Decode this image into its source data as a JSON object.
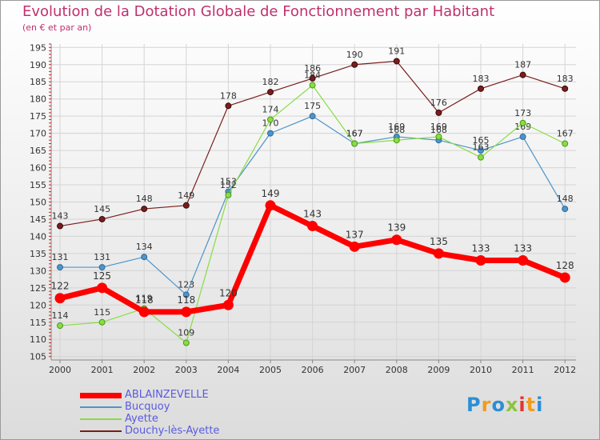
{
  "header": {
    "title": "Evolution de la Dotation Globale de Fonctionnement par Habitant",
    "subtitle": "(en € et par an)"
  },
  "logo": {
    "text": "Proxiti",
    "colors": [
      "#2a8fd6",
      "#f29b1d",
      "#2a8fd6",
      "#8bc53f",
      "#e3342f",
      "#f29b1d",
      "#2a8fd6"
    ]
  },
  "chart_data": {
    "type": "line",
    "title": "Evolution de la Dotation Globale de Fonctionnement par Habitant",
    "subtitle": "(en € et par an)",
    "xlabel": "",
    "ylabel": "",
    "x": [
      "2000",
      "2001",
      "2002",
      "2003",
      "2004",
      "2005",
      "2006",
      "2007",
      "2008",
      "2009",
      "2010",
      "2011",
      "2012"
    ],
    "ylim": [
      104,
      196
    ],
    "yticks": [
      105,
      110,
      115,
      120,
      125,
      130,
      135,
      140,
      145,
      150,
      155,
      160,
      165,
      170,
      175,
      180,
      185,
      190,
      195
    ],
    "grid": true,
    "legend": "bottom-left",
    "series": [
      {
        "name": "Douchy-lès-Ayette",
        "color": "#7a1d1d",
        "values": [
          143,
          145,
          148,
          149,
          178,
          182,
          186,
          190,
          191,
          176,
          183,
          187,
          183
        ]
      },
      {
        "name": "Bucquoy",
        "color": "#4e94c8",
        "values": [
          131,
          131,
          134,
          123,
          153,
          170,
          175,
          167,
          169,
          168,
          165,
          169,
          148
        ]
      },
      {
        "name": "Ayette",
        "color": "#88dd44",
        "values": [
          114,
          115,
          119,
          109,
          152,
          174,
          184,
          167,
          168,
          169,
          163,
          173,
          167
        ]
      },
      {
        "name": "ABLAINZEVELLE",
        "color": "#ff0000",
        "values": [
          122,
          125,
          118,
          118,
          120,
          149,
          143,
          137,
          139,
          135,
          133,
          133,
          128
        ]
      }
    ],
    "legend_order": [
      "ABLAINZEVELLE",
      "Bucquoy",
      "Ayette",
      "Douchy-lès-Ayette"
    ]
  }
}
